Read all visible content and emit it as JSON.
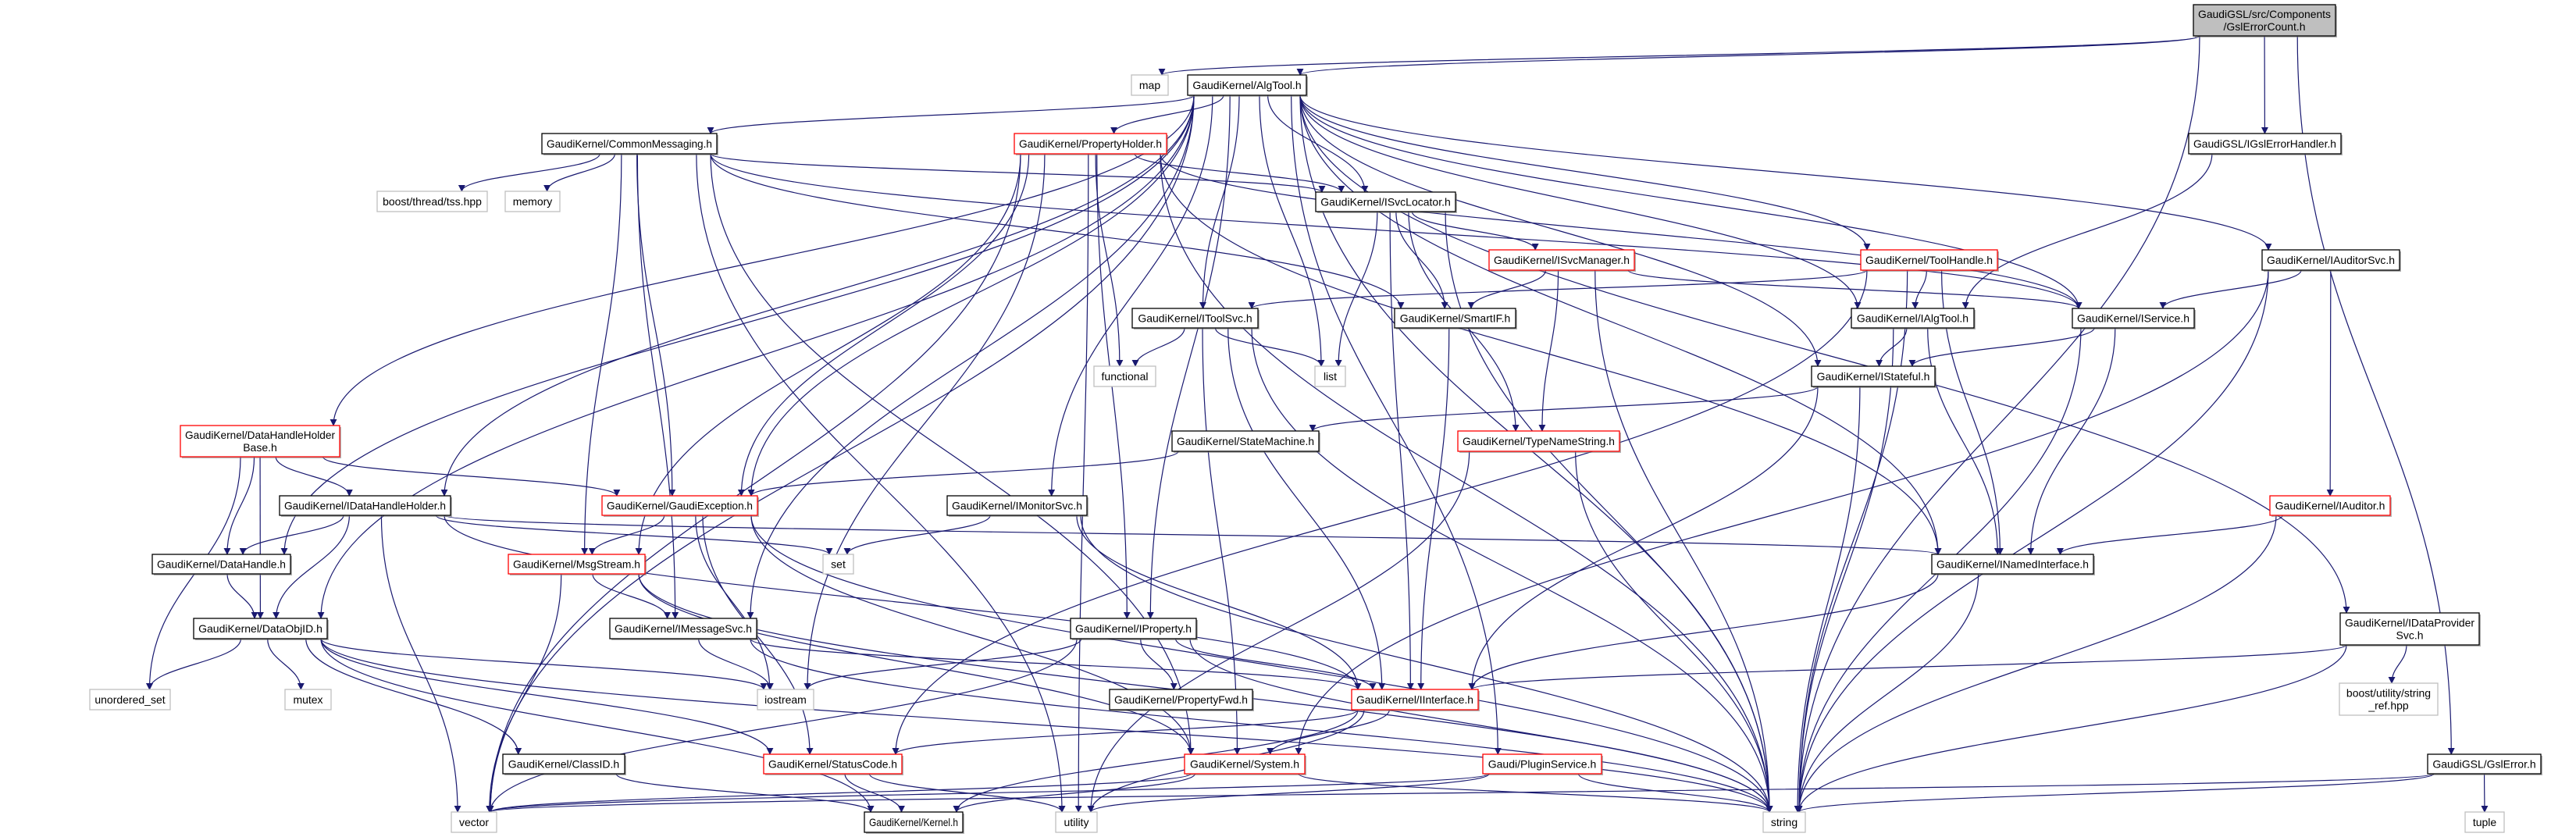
{
  "graph": {
    "type": "include-dependency-graph",
    "colors": {
      "edge": "#191970",
      "truncated_border": "#ff0000",
      "documented_border": "#000000",
      "external_border": "#bfbfbf",
      "root_fill": "#bfbfbf"
    },
    "nodes": [
      {
        "id": "root",
        "label": "GaudiGSL/src/Components\n/GslErrorCount.h",
        "kind": "root"
      },
      {
        "id": "map",
        "label": "map",
        "kind": "external"
      },
      {
        "id": "algtool",
        "label": "GaudiKernel/AlgTool.h",
        "kind": "documented"
      },
      {
        "id": "commonmsg",
        "label": "GaudiKernel/CommonMessaging.h",
        "kind": "documented"
      },
      {
        "id": "propholder",
        "label": "GaudiKernel/PropertyHolder.h",
        "kind": "truncated"
      },
      {
        "id": "igslerrh",
        "label": "GaudiGSL/IGslErrorHandler.h",
        "kind": "documented"
      },
      {
        "id": "tss",
        "label": "boost/thread/tss.hpp",
        "kind": "external"
      },
      {
        "id": "memory",
        "label": "memory",
        "kind": "external"
      },
      {
        "id": "isvcloc",
        "label": "GaudiKernel/ISvcLocator.h",
        "kind": "documented"
      },
      {
        "id": "isvcmgr",
        "label": "GaudiKernel/ISvcManager.h",
        "kind": "truncated"
      },
      {
        "id": "toolhandle",
        "label": "GaudiKernel/ToolHandle.h",
        "kind": "truncated"
      },
      {
        "id": "iauditorsvc",
        "label": "GaudiKernel/IAuditorSvc.h",
        "kind": "documented"
      },
      {
        "id": "itoolsvc",
        "label": "GaudiKernel/IToolSvc.h",
        "kind": "documented"
      },
      {
        "id": "smartif",
        "label": "GaudiKernel/SmartIF.h",
        "kind": "documented"
      },
      {
        "id": "ialgtool",
        "label": "GaudiKernel/IAlgTool.h",
        "kind": "documented"
      },
      {
        "id": "iservice",
        "label": "GaudiKernel/IService.h",
        "kind": "documented"
      },
      {
        "id": "functional",
        "label": "functional",
        "kind": "external"
      },
      {
        "id": "list",
        "label": "list",
        "kind": "external"
      },
      {
        "id": "istateful",
        "label": "GaudiKernel/IStateful.h",
        "kind": "documented"
      },
      {
        "id": "dhhbase",
        "label": "GaudiKernel/DataHandleHolder\nBase.h",
        "kind": "truncated"
      },
      {
        "id": "statemachine",
        "label": "GaudiKernel/StateMachine.h",
        "kind": "documented"
      },
      {
        "id": "typenamestring",
        "label": "GaudiKernel/TypeNameString.h",
        "kind": "truncated"
      },
      {
        "id": "idhh",
        "label": "GaudiKernel/IDataHandleHolder.h",
        "kind": "documented"
      },
      {
        "id": "gaudiexc",
        "label": "GaudiKernel/GaudiException.h",
        "kind": "truncated"
      },
      {
        "id": "imonitorsvc",
        "label": "GaudiKernel/IMonitorSvc.h",
        "kind": "documented"
      },
      {
        "id": "iauditor",
        "label": "GaudiKernel/IAuditor.h",
        "kind": "truncated"
      },
      {
        "id": "datahandle",
        "label": "GaudiKernel/DataHandle.h",
        "kind": "documented"
      },
      {
        "id": "msgstream",
        "label": "GaudiKernel/MsgStream.h",
        "kind": "truncated"
      },
      {
        "id": "set",
        "label": "set",
        "kind": "external"
      },
      {
        "id": "inamed",
        "label": "GaudiKernel/INamedInterface.h",
        "kind": "documented"
      },
      {
        "id": "dataobjid",
        "label": "GaudiKernel/DataObjID.h",
        "kind": "documented"
      },
      {
        "id": "imessagesvc",
        "label": "GaudiKernel/IMessageSvc.h",
        "kind": "documented"
      },
      {
        "id": "iproperty",
        "label": "GaudiKernel/IProperty.h",
        "kind": "documented"
      },
      {
        "id": "idataprov",
        "label": "GaudiKernel/IDataProvider\nSvc.h",
        "kind": "documented"
      },
      {
        "id": "unordered_set",
        "label": "unordered_set",
        "kind": "external"
      },
      {
        "id": "mutex",
        "label": "mutex",
        "kind": "external"
      },
      {
        "id": "iostream",
        "label": "iostream",
        "kind": "external"
      },
      {
        "id": "propfwd",
        "label": "GaudiKernel/PropertyFwd.h",
        "kind": "documented"
      },
      {
        "id": "iinterface",
        "label": "GaudiKernel/IInterface.h",
        "kind": "truncated"
      },
      {
        "id": "stringref",
        "label": "boost/utility/string\n_ref.hpp",
        "kind": "external"
      },
      {
        "id": "classid",
        "label": "GaudiKernel/ClassID.h",
        "kind": "documented"
      },
      {
        "id": "statuscode",
        "label": "GaudiKernel/StatusCode.h",
        "kind": "truncated"
      },
      {
        "id": "system",
        "label": "GaudiKernel/System.h",
        "kind": "truncated"
      },
      {
        "id": "pluginsvc",
        "label": "Gaudi/PluginService.h",
        "kind": "truncated"
      },
      {
        "id": "gslerror",
        "label": "GaudiGSL/GslError.h",
        "kind": "documented"
      },
      {
        "id": "vector",
        "label": "vector",
        "kind": "external"
      },
      {
        "id": "kernel",
        "label": "GaudiKernel/Kernel.h",
        "kind": "documented"
      },
      {
        "id": "utility",
        "label": "utility",
        "kind": "external"
      },
      {
        "id": "string",
        "label": "string",
        "kind": "external"
      },
      {
        "id": "tuple",
        "label": "tuple",
        "kind": "external"
      }
    ],
    "edges": [
      [
        "root",
        "map"
      ],
      [
        "root",
        "algtool"
      ],
      [
        "root",
        "igslerrh"
      ],
      [
        "root",
        "gslerror"
      ],
      [
        "root",
        "string"
      ],
      [
        "algtool",
        "commonmsg"
      ],
      [
        "algtool",
        "propholder"
      ],
      [
        "algtool",
        "isvcloc"
      ],
      [
        "algtool",
        "itoolsvc"
      ],
      [
        "algtool",
        "list"
      ],
      [
        "algtool",
        "vector"
      ],
      [
        "algtool",
        "dhhbase"
      ],
      [
        "algtool",
        "dataobjid"
      ],
      [
        "algtool",
        "datahandle"
      ],
      [
        "algtool",
        "idhh"
      ],
      [
        "algtool",
        "imessagesvc"
      ],
      [
        "algtool",
        "imonitorsvc"
      ],
      [
        "algtool",
        "iproperty"
      ],
      [
        "algtool",
        "iservice"
      ],
      [
        "algtool",
        "ialgtool"
      ],
      [
        "algtool",
        "toolhandle"
      ],
      [
        "algtool",
        "iauditorsvc"
      ],
      [
        "algtool",
        "idataprov"
      ],
      [
        "algtool",
        "istateful"
      ],
      [
        "algtool",
        "gaudiexc"
      ],
      [
        "algtool",
        "pluginsvc"
      ],
      [
        "algtool",
        "string"
      ],
      [
        "algtool",
        "inamed"
      ],
      [
        "commonmsg",
        "tss"
      ],
      [
        "commonmsg",
        "memory"
      ],
      [
        "commonmsg",
        "msgstream"
      ],
      [
        "commonmsg",
        "imessagesvc"
      ],
      [
        "commonmsg",
        "gaudiexc"
      ],
      [
        "commonmsg",
        "isvcloc"
      ],
      [
        "commonmsg",
        "iservice"
      ],
      [
        "commonmsg",
        "smartif"
      ],
      [
        "commonmsg",
        "utility"
      ],
      [
        "commonmsg",
        "system"
      ],
      [
        "propholder",
        "isvcloc"
      ],
      [
        "propholder",
        "functional"
      ],
      [
        "propholder",
        "iostream"
      ],
      [
        "propholder",
        "iproperty"
      ],
      [
        "propholder",
        "gaudiexc"
      ],
      [
        "propholder",
        "msgstream"
      ],
      [
        "propholder",
        "inamed"
      ],
      [
        "propholder",
        "string"
      ],
      [
        "propholder",
        "utility"
      ],
      [
        "propholder",
        "vector"
      ],
      [
        "propholder",
        "iservice"
      ],
      [
        "isvcloc",
        "isvcmgr"
      ],
      [
        "isvcloc",
        "smartif"
      ],
      [
        "isvcloc",
        "iinterface"
      ],
      [
        "isvcloc",
        "typenamestring"
      ],
      [
        "isvcloc",
        "list"
      ],
      [
        "isvcloc",
        "string"
      ],
      [
        "isvcmgr",
        "iservice"
      ],
      [
        "isvcmgr",
        "smartif"
      ],
      [
        "isvcmgr",
        "typenamestring"
      ],
      [
        "isvcmgr",
        "string"
      ],
      [
        "itoolsvc",
        "functional"
      ],
      [
        "itoolsvc",
        "list"
      ],
      [
        "itoolsvc",
        "iinterface"
      ],
      [
        "itoolsvc",
        "system"
      ],
      [
        "itoolsvc",
        "string"
      ],
      [
        "smartif",
        "iinterface"
      ],
      [
        "igslerrh",
        "ialgtool"
      ],
      [
        "toolhandle",
        "ialgtool"
      ],
      [
        "toolhandle",
        "itoolsvc"
      ],
      [
        "toolhandle",
        "inamed"
      ],
      [
        "toolhandle",
        "statuscode"
      ],
      [
        "toolhandle",
        "string"
      ],
      [
        "iauditorsvc",
        "iservice"
      ],
      [
        "iauditorsvc",
        "iauditor"
      ],
      [
        "iauditorsvc",
        "string"
      ],
      [
        "iauditorsvc",
        "system"
      ],
      [
        "ialgtool",
        "istateful"
      ],
      [
        "ialgtool",
        "inamed"
      ],
      [
        "ialgtool",
        "string"
      ],
      [
        "iservice",
        "istateful"
      ],
      [
        "iservice",
        "inamed"
      ],
      [
        "iservice",
        "string"
      ],
      [
        "istateful",
        "statemachine"
      ],
      [
        "istateful",
        "iinterface"
      ],
      [
        "istateful",
        "string"
      ],
      [
        "statemachine",
        "gaudiexc"
      ],
      [
        "typenamestring",
        "string"
      ],
      [
        "typenamestring",
        "utility"
      ],
      [
        "dhhbase",
        "idhh"
      ],
      [
        "dhhbase",
        "datahandle"
      ],
      [
        "dhhbase",
        "dataobjid"
      ],
      [
        "dhhbase",
        "gaudiexc"
      ],
      [
        "dhhbase",
        "unordered_set"
      ],
      [
        "idhh",
        "datahandle"
      ],
      [
        "idhh",
        "dataobjid"
      ],
      [
        "idhh",
        "vector"
      ],
      [
        "idhh",
        "set"
      ],
      [
        "idhh",
        "inamed"
      ],
      [
        "idhh",
        "iinterface"
      ],
      [
        "datahandle",
        "dataobjid"
      ],
      [
        "dataobjid",
        "unordered_set"
      ],
      [
        "dataobjid",
        "mutex"
      ],
      [
        "dataobjid",
        "iostream"
      ],
      [
        "dataobjid",
        "classid"
      ],
      [
        "dataobjid",
        "statuscode"
      ],
      [
        "dataobjid",
        "string"
      ],
      [
        "dataobjid",
        "kernel"
      ],
      [
        "gaudiexc",
        "msgstream"
      ],
      [
        "gaudiexc",
        "statuscode"
      ],
      [
        "gaudiexc",
        "iostream"
      ],
      [
        "gaudiexc",
        "string"
      ],
      [
        "gaudiexc",
        "system"
      ],
      [
        "msgstream",
        "imessagesvc"
      ],
      [
        "msgstream",
        "vector"
      ],
      [
        "msgstream",
        "system"
      ],
      [
        "msgstream",
        "string"
      ],
      [
        "imessagesvc",
        "iostream"
      ],
      [
        "imessagesvc",
        "iinterface"
      ],
      [
        "imessagesvc",
        "string"
      ],
      [
        "imonitorsvc",
        "set"
      ],
      [
        "imonitorsvc",
        "iinterface"
      ],
      [
        "imonitorsvc",
        "string"
      ],
      [
        "iproperty",
        "propfwd"
      ],
      [
        "iproperty",
        "iinterface"
      ],
      [
        "iproperty",
        "iostream"
      ],
      [
        "iproperty",
        "vector"
      ],
      [
        "iproperty",
        "string"
      ],
      [
        "iinterface",
        "statuscode"
      ],
      [
        "iinterface",
        "system"
      ],
      [
        "iinterface",
        "kernel"
      ],
      [
        "iinterface",
        "utility"
      ],
      [
        "statuscode",
        "kernel"
      ],
      [
        "statuscode",
        "utility"
      ],
      [
        "classid",
        "kernel"
      ],
      [
        "system",
        "kernel"
      ],
      [
        "system",
        "vector"
      ],
      [
        "system",
        "string"
      ],
      [
        "pluginsvc",
        "utility"
      ],
      [
        "pluginsvc",
        "string"
      ],
      [
        "pluginsvc",
        "vector"
      ],
      [
        "iauditor",
        "inamed"
      ],
      [
        "iauditor",
        "string"
      ],
      [
        "inamed",
        "iinterface"
      ],
      [
        "inamed",
        "string"
      ],
      [
        "idataprov",
        "iinterface"
      ],
      [
        "idataprov",
        "stringref"
      ],
      [
        "idataprov",
        "string"
      ],
      [
        "gslerror",
        "tuple"
      ],
      [
        "gslerror",
        "string"
      ],
      [
        "gslerror",
        "vector"
      ]
    ]
  }
}
